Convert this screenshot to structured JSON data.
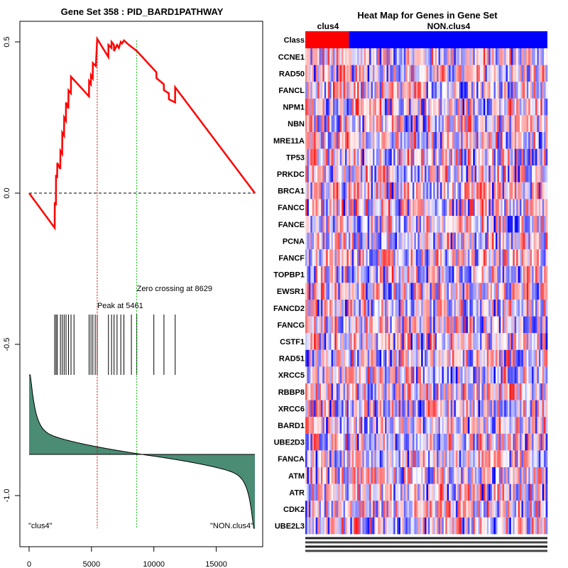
{
  "chart_data": [
    {
      "type": "line",
      "title": "Gene Set  358 : PID_BARD1PATHWAY",
      "xlim": [
        0,
        18200
      ],
      "ylim": [
        -1.1,
        0.55
      ],
      "x_ticks": [
        0,
        5000,
        10000,
        15000
      ],
      "x_tick_labels": [
        "0",
        "5000",
        "10000",
        "15000"
      ],
      "y_ticks": [
        0.5,
        0.0,
        -0.5,
        -1.0
      ],
      "y_tick_labels": [
        "0.5",
        "0.0",
        "-0.5",
        "-1.0"
      ],
      "enrichment_score_curve": [
        [
          0,
          0.0
        ],
        [
          2050,
          -0.115
        ],
        [
          2060,
          -0.03
        ],
        [
          2150,
          -0.04
        ],
        [
          2160,
          0.06
        ],
        [
          2250,
          0.05
        ],
        [
          2260,
          0.1
        ],
        [
          2500,
          0.08
        ],
        [
          2510,
          0.14
        ],
        [
          2650,
          0.13
        ],
        [
          2660,
          0.2
        ],
        [
          2800,
          0.19
        ],
        [
          2810,
          0.25
        ],
        [
          2950,
          0.24
        ],
        [
          2960,
          0.3
        ],
        [
          3150,
          0.28
        ],
        [
          3160,
          0.34
        ],
        [
          3350,
          0.33
        ],
        [
          3360,
          0.385
        ],
        [
          4800,
          0.32
        ],
        [
          4810,
          0.37
        ],
        [
          4950,
          0.36
        ],
        [
          4960,
          0.39
        ],
        [
          5100,
          0.38
        ],
        [
          5110,
          0.43
        ],
        [
          5350,
          0.42
        ],
        [
          5461,
          0.51
        ],
        [
          6350,
          0.45
        ],
        [
          6360,
          0.49
        ],
        [
          6600,
          0.48
        ],
        [
          6610,
          0.5
        ],
        [
          6800,
          0.49
        ],
        [
          6810,
          0.47
        ],
        [
          7050,
          0.49
        ],
        [
          7200,
          0.48
        ],
        [
          7350,
          0.5
        ],
        [
          7450,
          0.495
        ],
        [
          7600,
          0.505
        ],
        [
          8000,
          0.49
        ],
        [
          8629,
          0.47
        ],
        [
          10200,
          0.4
        ],
        [
          10210,
          0.38
        ],
        [
          10800,
          0.36
        ],
        [
          10810,
          0.34
        ],
        [
          11200,
          0.33
        ],
        [
          11210,
          0.31
        ],
        [
          11700,
          0.3
        ],
        [
          11710,
          0.35
        ],
        [
          18100,
          0.0
        ]
      ],
      "hit_positions": [
        2050,
        2160,
        2260,
        2510,
        2660,
        2810,
        2960,
        3160,
        3360,
        3600,
        4810,
        4960,
        5110,
        5300,
        5461,
        6360,
        6610,
        6810,
        7050,
        7350,
        7600,
        8200,
        8629,
        10000,
        10810,
        11710
      ],
      "peak": {
        "x": 5461,
        "label": "Peak at 5461"
      },
      "zero_crossing": {
        "x": 8629,
        "label": "Zero crossing at 8629"
      },
      "ranked_metric": {
        "n_genes": 18100,
        "top": 0.6,
        "baseline": 0.0,
        "bottom": -0.6
      },
      "left_label": "\"clus4\"",
      "right_label": "\"NON.clus4\"",
      "colors": {
        "curve": "#ff0000",
        "peak_line": "#cc0000",
        "zero_line": "#00bb00",
        "metric_fill": "#4a8c74"
      }
    },
    {
      "type": "heatmap",
      "title": "Heat Map for Genes in Gene Set",
      "class_row_label": "Class",
      "classes": [
        {
          "name": "clus4",
          "color": "#ff0000",
          "fraction": 0.18
        },
        {
          "name": "NON.clus4",
          "color": "#0000ff",
          "fraction": 0.82
        }
      ],
      "genes": [
        "CCNE1",
        "RAD50",
        "FANCL",
        "NPM1",
        "NBN",
        "MRE11A",
        "TP53",
        "PRKDC",
        "BRCA1",
        "FANCC",
        "FANCE",
        "PCNA",
        "FANCF",
        "TOPBP1",
        "EWSR1",
        "FANCD2",
        "FANCG",
        "CSTF1",
        "RAD51",
        "XRCC5",
        "RBBP8",
        "XRCC6",
        "BARD1",
        "UBE2D3",
        "FANCA",
        "ATM",
        "ATR",
        "CDK2",
        "UBE2L3"
      ],
      "n_samples": 140,
      "colors": {
        "high": "#ff0000",
        "low": "#0000ff",
        "mid": "#ffffff"
      }
    }
  ]
}
